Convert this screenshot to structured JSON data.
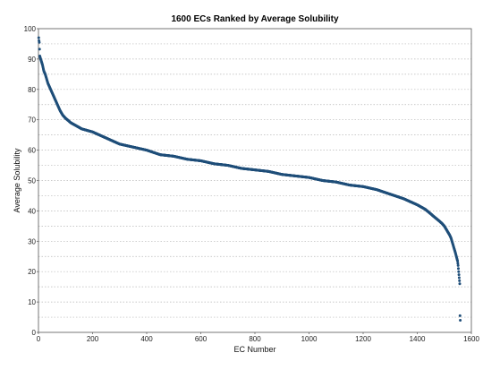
{
  "chart_data": {
    "type": "scatter",
    "title": "1600 ECs Ranked by Average Solubility",
    "xlabel": "EC Number",
    "ylabel": "Average Solubility",
    "xlim": [
      0,
      1600
    ],
    "ylim": [
      0,
      100
    ],
    "x_ticks": [
      0,
      200,
      400,
      600,
      800,
      1000,
      1200,
      1400,
      1600
    ],
    "x_tick_labels": [
      "0",
      "200",
      "400",
      "600",
      "800",
      "1000",
      "1200",
      "1400",
      "1600"
    ],
    "y_ticks": [
      0,
      10,
      20,
      30,
      40,
      50,
      60,
      70,
      80,
      90,
      100
    ],
    "y_tick_labels": [
      "0",
      "10",
      "20",
      "30",
      "40",
      "50",
      "60",
      "70",
      "80",
      "90",
      "100"
    ],
    "grid": "horizontal-dotted",
    "marker_color": "#1f4e79",
    "series": [
      {
        "points": [
          [
            1,
            97
          ],
          [
            2,
            96
          ],
          [
            3,
            95.5
          ],
          [
            5,
            91
          ],
          [
            8,
            90
          ],
          [
            10,
            89.5
          ],
          [
            15,
            88
          ],
          [
            20,
            86
          ],
          [
            25,
            85
          ],
          [
            30,
            83.5
          ],
          [
            35,
            82
          ],
          [
            40,
            81
          ],
          [
            50,
            79
          ],
          [
            60,
            77
          ],
          [
            70,
            75
          ],
          [
            80,
            73
          ],
          [
            90,
            71.5
          ],
          [
            100,
            70.5
          ],
          [
            120,
            69
          ],
          [
            140,
            68
          ],
          [
            160,
            67
          ],
          [
            180,
            66.5
          ],
          [
            200,
            66
          ],
          [
            250,
            64
          ],
          [
            300,
            62
          ],
          [
            350,
            61
          ],
          [
            400,
            60
          ],
          [
            450,
            58.5
          ],
          [
            500,
            58
          ],
          [
            550,
            57
          ],
          [
            600,
            56.5
          ],
          [
            650,
            55.5
          ],
          [
            700,
            55
          ],
          [
            750,
            54
          ],
          [
            800,
            53.5
          ],
          [
            850,
            53
          ],
          [
            900,
            52
          ],
          [
            950,
            51.5
          ],
          [
            1000,
            51
          ],
          [
            1050,
            50
          ],
          [
            1100,
            49.5
          ],
          [
            1150,
            48.5
          ],
          [
            1200,
            48
          ],
          [
            1250,
            47
          ],
          [
            1300,
            45.5
          ],
          [
            1350,
            44
          ],
          [
            1400,
            42
          ],
          [
            1430,
            40.5
          ],
          [
            1450,
            39
          ],
          [
            1470,
            37.5
          ],
          [
            1490,
            36
          ],
          [
            1500,
            35
          ],
          [
            1510,
            33.5
          ],
          [
            1520,
            32
          ],
          [
            1525,
            31
          ],
          [
            1530,
            29.5
          ],
          [
            1535,
            28
          ],
          [
            1540,
            26.5
          ],
          [
            1543,
            25.5
          ],
          [
            1546,
            24.5
          ],
          [
            1549,
            23.5
          ],
          [
            1551,
            22
          ],
          [
            1553,
            20
          ],
          [
            1555,
            18
          ],
          [
            1556,
            17
          ],
          [
            1557,
            16
          ],
          [
            1558,
            5.5
          ],
          [
            1559,
            4
          ]
        ]
      }
    ]
  }
}
